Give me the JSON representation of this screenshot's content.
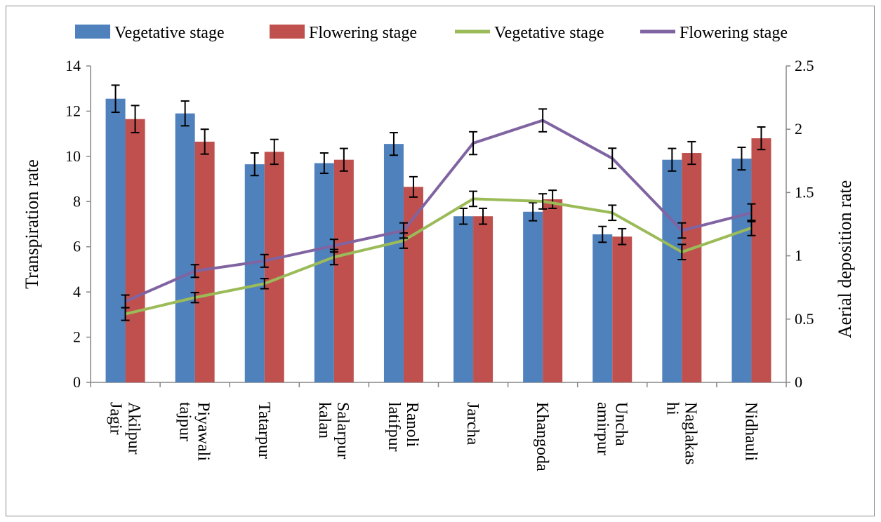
{
  "chart_data": {
    "type": "bar",
    "categories": [
      [
        "Akilpur",
        "Jagir"
      ],
      [
        "Piyawali",
        "tajpur"
      ],
      [
        "Tatarpur"
      ],
      [
        "Salarpur",
        "kalan"
      ],
      [
        "Ranoli",
        "latifpur"
      ],
      [
        "Jarcha"
      ],
      [
        "Khangoda"
      ],
      [
        "Uncha",
        "amirpur"
      ],
      [
        "Naglakas",
        "hi"
      ],
      [
        "Nidhauli"
      ]
    ],
    "bar_series": [
      {
        "name": "Vegetative stage",
        "color": "#4f81bd",
        "axis": "left",
        "values": [
          12.55,
          11.9,
          9.65,
          9.7,
          10.55,
          7.35,
          7.55,
          6.55,
          9.85,
          9.9
        ],
        "errors": [
          0.6,
          0.55,
          0.5,
          0.45,
          0.5,
          0.35,
          0.4,
          0.35,
          0.5,
          0.5
        ]
      },
      {
        "name": "Flowering stage",
        "color": "#c0504d",
        "axis": "left",
        "values": [
          11.65,
          10.65,
          10.2,
          9.85,
          8.65,
          7.35,
          8.1,
          6.45,
          10.15,
          10.8
        ],
        "errors": [
          0.6,
          0.55,
          0.55,
          0.5,
          0.45,
          0.35,
          0.4,
          0.35,
          0.5,
          0.5
        ]
      }
    ],
    "line_series": [
      {
        "name": "Vegetative stage",
        "color": "#9bbb59",
        "axis": "right",
        "values": [
          0.54,
          0.67,
          0.78,
          0.99,
          1.12,
          1.45,
          1.43,
          1.34,
          1.03,
          1.22
        ],
        "errors": [
          0.05,
          0.04,
          0.04,
          0.06,
          0.06,
          0.06,
          0.06,
          0.06,
          0.06,
          0.06
        ]
      },
      {
        "name": "Flowering stage",
        "color": "#8064a2",
        "axis": "right",
        "values": [
          0.64,
          0.88,
          0.96,
          1.08,
          1.2,
          1.89,
          2.07,
          1.77,
          1.2,
          1.34
        ],
        "errors": [
          0.05,
          0.05,
          0.05,
          0.05,
          0.06,
          0.09,
          0.09,
          0.08,
          0.06,
          0.07
        ]
      }
    ],
    "y_left": {
      "label": "Transpiration rate",
      "range": [
        0,
        14
      ],
      "ticks": [
        "0",
        "2",
        "4",
        "6",
        "8",
        "10",
        "12",
        "14"
      ]
    },
    "y_right": {
      "label": "Aerial deposition rate",
      "range": [
        0,
        2.5
      ],
      "ticks": [
        "0",
        "0.5",
        "1",
        "1.5",
        "2",
        "2.5"
      ]
    },
    "legend_position": "top",
    "grid": false
  }
}
